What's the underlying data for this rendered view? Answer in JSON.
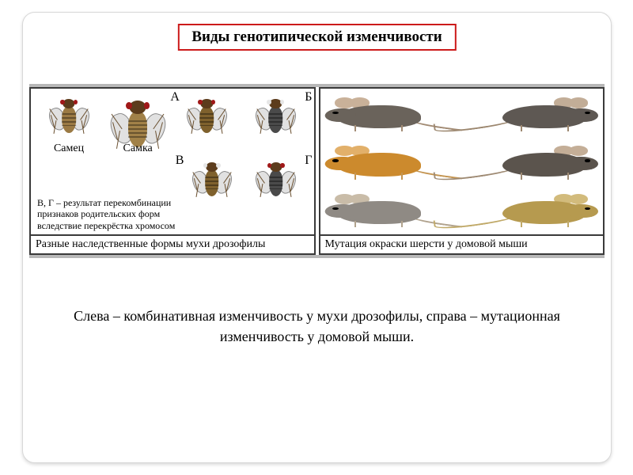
{
  "title": "Виды генотипической изменчивости",
  "title_style": {
    "border_color": "#cc1a1a",
    "fontsize": 19,
    "fontweight": "bold"
  },
  "left_panel": {
    "caption": "Разные наследственные формы мухи дрозофилы",
    "note_lines": [
      "В, Г – результат перекомбинации",
      "признаков родительских форм",
      "вследствие перекрёстка хромосом"
    ],
    "sex_labels": {
      "male": "Самец",
      "female": "Самка"
    },
    "variant_labels": {
      "A": "А",
      "B": "Б",
      "V": "В",
      "G": "Г"
    },
    "flies": {
      "male": {
        "body_color": "#9b7a44",
        "eye_color": "#a01818",
        "size": "small"
      },
      "female": {
        "body_color": "#a18148",
        "eye_color": "#a01818",
        "size": "big"
      },
      "A": {
        "body_color": "#7f612d",
        "eye_color": "#a01818",
        "size": "small"
      },
      "B": {
        "body_color": "#4a4a4a",
        "eye_color": "#e6e6e6",
        "size": "small"
      },
      "V": {
        "body_color": "#7f612d",
        "eye_color": "#e6e6e6",
        "size": "small"
      },
      "G": {
        "body_color": "#4a4a4a",
        "eye_color": "#a01818",
        "size": "small"
      }
    }
  },
  "right_panel": {
    "caption": "Мутация окраски шерсти у домовой мыши",
    "mice": [
      {
        "pos": "top-left",
        "face": "left",
        "body_color": "#6a635b",
        "ear_color": "#c9b199",
        "tail_color": "#a28b74"
      },
      {
        "pos": "top-right",
        "face": "right",
        "body_color": "#5e5853",
        "ear_color": "#c2ad97",
        "tail_color": "#9c876f"
      },
      {
        "pos": "mid-left",
        "face": "left",
        "body_color": "#cc8a2d",
        "ear_color": "#e2b06a",
        "tail_color": "#c49552"
      },
      {
        "pos": "mid-right",
        "face": "right",
        "body_color": "#5b544d",
        "ear_color": "#c4ae97",
        "tail_color": "#9e8a73"
      },
      {
        "pos": "bot-left",
        "face": "left",
        "body_color": "#8f8a84",
        "ear_color": "#c9bca8",
        "tail_color": "#b1a38e"
      },
      {
        "pos": "bot-right",
        "face": "right",
        "body_color": "#b69a4f",
        "ear_color": "#d2bb7c",
        "tail_color": "#c0a968"
      }
    ]
  },
  "description": "Слева – комбинативная изменчивость у мухи дрозофилы, справа – мутационная изменчивость у домовой мыши.",
  "style": {
    "slide_border_color": "#d8d8d8",
    "slide_border_radius": 16,
    "panel_border_color": "#3a3a3a",
    "panel_strip_color": "#b8b8b8",
    "background_color": "#ffffff",
    "caption_fontsize": 14,
    "note_fontsize": 12,
    "description_fontsize": 18,
    "font_family": "Times New Roman"
  }
}
